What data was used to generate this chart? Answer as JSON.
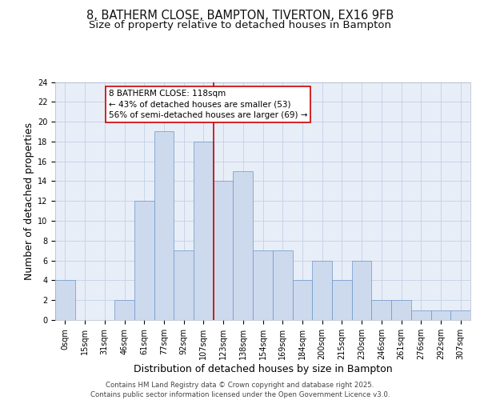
{
  "title_line1": "8, BATHERM CLOSE, BAMPTON, TIVERTON, EX16 9FB",
  "title_line2": "Size of property relative to detached houses in Bampton",
  "xlabel": "Distribution of detached houses by size in Bampton",
  "ylabel": "Number of detached properties",
  "bar_labels": [
    "0sqm",
    "15sqm",
    "31sqm",
    "46sqm",
    "61sqm",
    "77sqm",
    "92sqm",
    "107sqm",
    "123sqm",
    "138sqm",
    "154sqm",
    "169sqm",
    "184sqm",
    "200sqm",
    "215sqm",
    "230sqm",
    "246sqm",
    "261sqm",
    "276sqm",
    "292sqm",
    "307sqm"
  ],
  "bar_values": [
    4,
    0,
    0,
    2,
    12,
    19,
    7,
    18,
    14,
    15,
    7,
    7,
    4,
    6,
    4,
    6,
    2,
    2,
    1,
    1,
    1
  ],
  "bar_color": "#cddaed",
  "bar_edge_color": "#6a96c8",
  "grid_color": "#c8d4e8",
  "background_color": "#e8eef8",
  "vline_x_index": 7.5,
  "vline_color": "#cc0000",
  "annotation_text": "8 BATHERM CLOSE: 118sqm\n← 43% of detached houses are smaller (53)\n56% of semi-detached houses are larger (69) →",
  "annotation_box_color": "#cc0000",
  "ylim": [
    0,
    24
  ],
  "yticks": [
    0,
    2,
    4,
    6,
    8,
    10,
    12,
    14,
    16,
    18,
    20,
    22,
    24
  ],
  "footer_text": "Contains HM Land Registry data © Crown copyright and database right 2025.\nContains public sector information licensed under the Open Government Licence v3.0.",
  "title_fontsize": 10.5,
  "subtitle_fontsize": 9.5,
  "axis_label_fontsize": 9,
  "tick_fontsize": 7,
  "annotation_fontsize": 7.5,
  "footer_fontsize": 6.2
}
